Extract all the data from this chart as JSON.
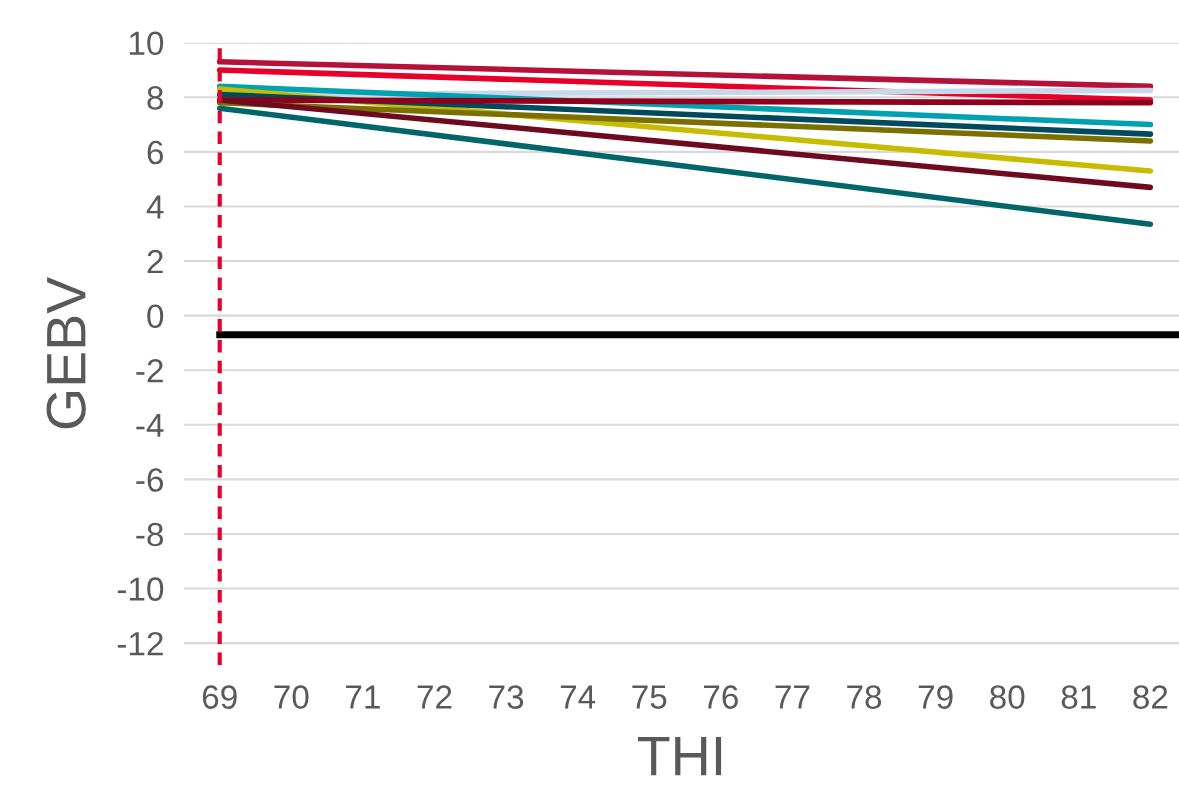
{
  "chart_data": {
    "type": "line",
    "xlabel": "THI",
    "ylabel": "GEBV",
    "x": [
      69,
      82
    ],
    "series": [
      {
        "color": "#b5123a",
        "values": [
          9.3,
          8.4
        ]
      },
      {
        "color": "#e8002a",
        "values": [
          9.0,
          7.9
        ]
      },
      {
        "color": "#c6d8ea",
        "values": [
          8.1,
          8.25
        ]
      },
      {
        "color": "#00a2b0",
        "values": [
          8.4,
          7.0
        ]
      },
      {
        "color": "#c8bc00",
        "values": [
          8.3,
          5.3
        ]
      },
      {
        "color": "#004a5e",
        "values": [
          8.1,
          6.65
        ]
      },
      {
        "color": "#8e001c",
        "values": [
          7.9,
          7.8
        ]
      },
      {
        "color": "#7a7000",
        "values": [
          7.8,
          6.4
        ]
      },
      {
        "color": "#6e0a20",
        "values": [
          7.9,
          4.7
        ]
      },
      {
        "color": "#00666a",
        "values": [
          7.6,
          3.35
        ]
      }
    ],
    "ref_lines": [
      {
        "axis": "y",
        "value": -0.7,
        "color": "#000000",
        "line_style": "solid"
      },
      {
        "axis": "x",
        "value": 69,
        "color": "#e8002a",
        "line_style": "dashed"
      }
    ],
    "xlim": [
      68.5,
      82.4
    ],
    "ylim": [
      -12.8,
      10
    ],
    "xticks": [
      69,
      70,
      71,
      72,
      73,
      74,
      75,
      76,
      77,
      78,
      79,
      80,
      81,
      82
    ],
    "yticks": [
      -12,
      -10,
      -8,
      -6,
      -4,
      -2,
      0,
      2,
      4,
      6,
      8,
      10
    ],
    "grid": "y",
    "legend": false,
    "marker": "none",
    "line_style": "solid"
  }
}
